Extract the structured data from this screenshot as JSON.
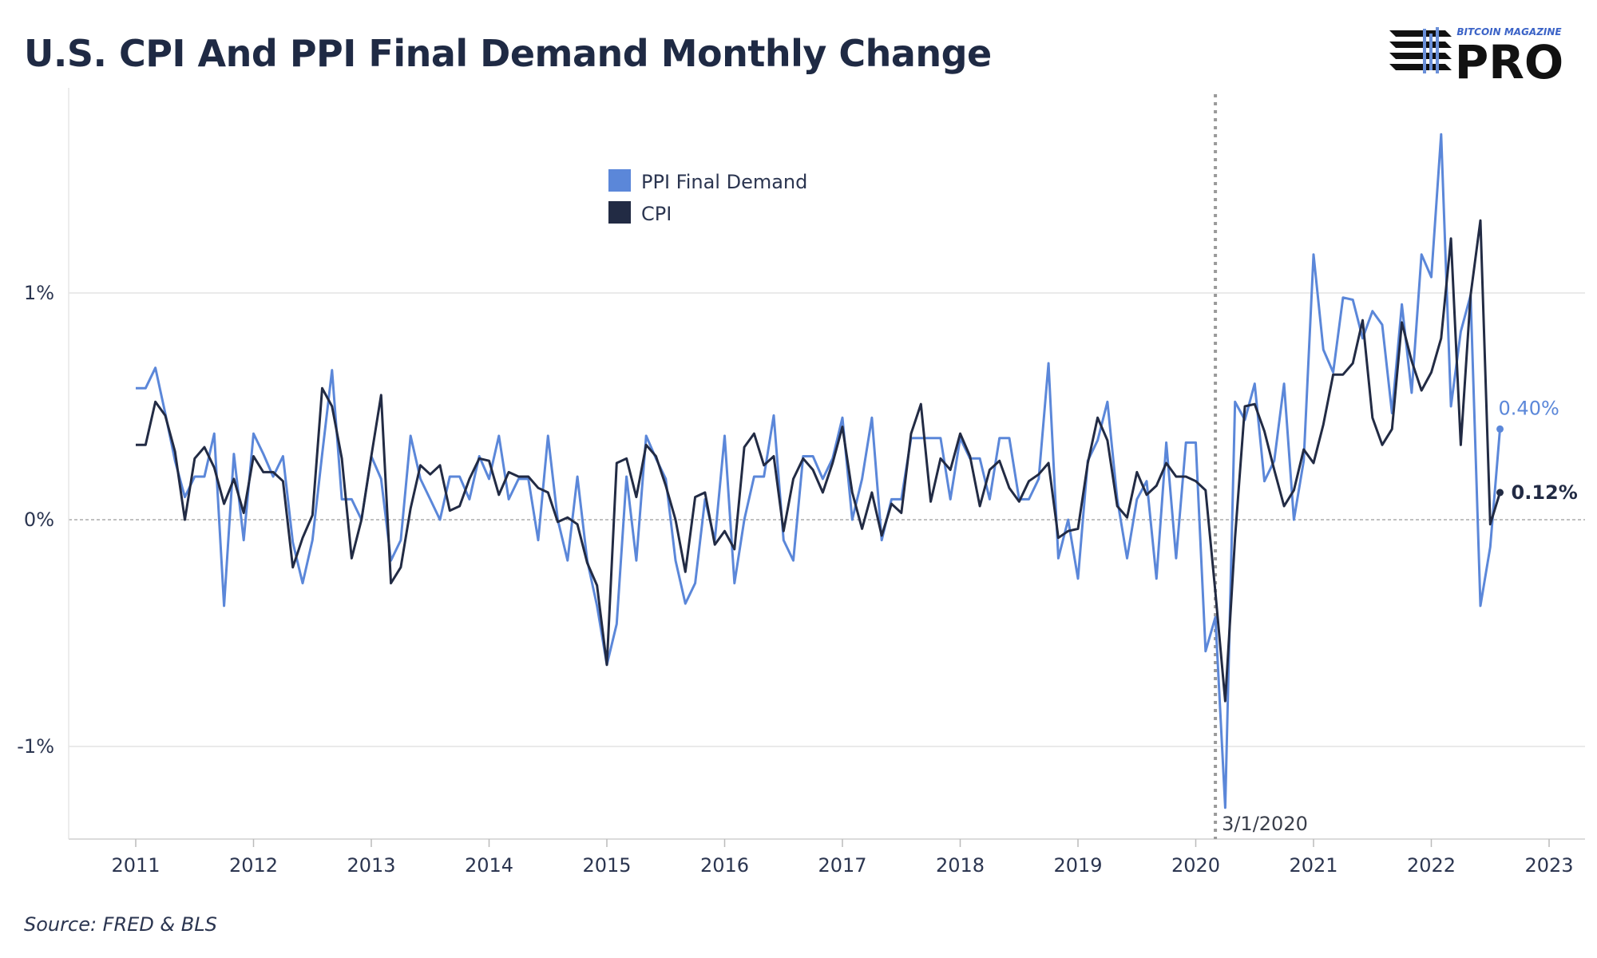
{
  "header": {
    "title": "U.S. CPI And PPI Final Demand Monthly Change",
    "logo_top": "BITCOIN MAGAZINE",
    "logo_main": "PRO"
  },
  "footer": {
    "source": "Source: FRED & BLS"
  },
  "colors": {
    "ppi": "#5b87d9",
    "cpi": "#222b44",
    "grid": "#e3e3e3",
    "zero": "#9a9a9a",
    "vline": "#9a9a9a"
  },
  "chart_data": {
    "type": "line",
    "title": "U.S. CPI And PPI Final Demand Monthly Change",
    "xlabel": "",
    "ylabel": "",
    "x_axis": {
      "type": "time",
      "ticks": [
        "2011",
        "2012",
        "2013",
        "2014",
        "2015",
        "2016",
        "2017",
        "2018",
        "2019",
        "2020",
        "2021",
        "2022",
        "2023"
      ]
    },
    "y_axis": {
      "ticks": [
        -1,
        0,
        1
      ],
      "tick_labels": [
        "-1%",
        "0%",
        "1%"
      ],
      "ylim": [
        -1.42,
        1.9
      ]
    },
    "legend": {
      "position": "top-center",
      "entries": [
        "PPI Final Demand",
        "CPI"
      ]
    },
    "annotation": {
      "date": "2020-03",
      "label": "3/1/2020"
    },
    "x_start": "2011-01",
    "series": [
      {
        "name": "PPI Final Demand",
        "color": "#5b87d9",
        "end_label": "0.40%",
        "values": [
          0.58,
          0.58,
          0.67,
          0.47,
          0.26,
          0.1,
          0.19,
          0.19,
          0.38,
          -0.38,
          0.29,
          -0.09,
          0.38,
          0.29,
          0.19,
          0.28,
          -0.1,
          -0.28,
          -0.09,
          0.29,
          0.66,
          0.09,
          0.09,
          0.0,
          0.28,
          0.18,
          -0.18,
          -0.09,
          0.37,
          0.18,
          0.09,
          0.0,
          0.19,
          0.19,
          0.09,
          0.28,
          0.18,
          0.37,
          0.09,
          0.18,
          0.18,
          -0.09,
          0.37,
          0.0,
          -0.18,
          0.19,
          -0.18,
          -0.38,
          -0.64,
          -0.46,
          0.19,
          -0.18,
          0.37,
          0.27,
          0.18,
          -0.18,
          -0.37,
          -0.28,
          0.09,
          -0.09,
          0.37,
          -0.28,
          0.0,
          0.19,
          0.19,
          0.46,
          -0.09,
          -0.18,
          0.28,
          0.28,
          0.18,
          0.27,
          0.45,
          0.0,
          0.18,
          0.45,
          -0.09,
          0.09,
          0.09,
          0.36,
          0.36,
          0.36,
          0.36,
          0.09,
          0.36,
          0.27,
          0.27,
          0.09,
          0.36,
          0.36,
          0.09,
          0.09,
          0.18,
          0.69,
          -0.17,
          0.0,
          -0.26,
          0.26,
          0.35,
          0.52,
          0.09,
          -0.17,
          0.09,
          0.17,
          -0.26,
          0.34,
          -0.17,
          0.34,
          0.34,
          -0.58,
          -0.43,
          -1.27,
          0.52,
          0.44,
          0.6,
          0.17,
          0.26,
          0.6,
          0.0,
          0.26,
          1.17,
          0.75,
          0.65,
          0.98,
          0.97,
          0.8,
          0.92,
          0.86,
          0.47,
          0.95,
          0.56,
          1.17,
          1.07,
          1.7,
          0.5,
          0.83,
          0.99,
          -0.38,
          -0.12,
          0.4
        ]
      },
      {
        "name": "CPI",
        "color": "#222b44",
        "end_label": "0.12%",
        "values": [
          0.33,
          0.33,
          0.52,
          0.46,
          0.3,
          0.0,
          0.27,
          0.32,
          0.23,
          0.07,
          0.18,
          0.03,
          0.28,
          0.21,
          0.21,
          0.17,
          -0.21,
          -0.08,
          0.02,
          0.58,
          0.5,
          0.27,
          -0.17,
          0.0,
          0.28,
          0.55,
          -0.28,
          -0.21,
          0.05,
          0.24,
          0.2,
          0.24,
          0.04,
          0.06,
          0.18,
          0.27,
          0.26,
          0.11,
          0.21,
          0.19,
          0.19,
          0.14,
          0.12,
          -0.01,
          0.01,
          -0.02,
          -0.19,
          -0.29,
          -0.64,
          0.25,
          0.27,
          0.1,
          0.33,
          0.28,
          0.15,
          0.0,
          -0.23,
          0.1,
          0.12,
          -0.11,
          -0.05,
          -0.13,
          0.32,
          0.38,
          0.24,
          0.28,
          -0.05,
          0.18,
          0.27,
          0.22,
          0.12,
          0.25,
          0.41,
          0.12,
          -0.04,
          0.12,
          -0.07,
          0.07,
          0.03,
          0.38,
          0.51,
          0.08,
          0.27,
          0.22,
          0.38,
          0.28,
          0.06,
          0.22,
          0.26,
          0.14,
          0.08,
          0.17,
          0.2,
          0.25,
          -0.08,
          -0.05,
          -0.04,
          0.25,
          0.45,
          0.35,
          0.06,
          0.01,
          0.21,
          0.11,
          0.15,
          0.25,
          0.19,
          0.19,
          0.17,
          0.13,
          -0.32,
          -0.8,
          -0.08,
          0.5,
          0.51,
          0.39,
          0.22,
          0.06,
          0.13,
          0.31,
          0.25,
          0.42,
          0.64,
          0.64,
          0.69,
          0.88,
          0.45,
          0.33,
          0.4,
          0.87,
          0.7,
          0.57,
          0.65,
          0.8,
          1.24,
          0.33,
          0.99,
          1.32,
          -0.02,
          0.12
        ]
      }
    ]
  }
}
